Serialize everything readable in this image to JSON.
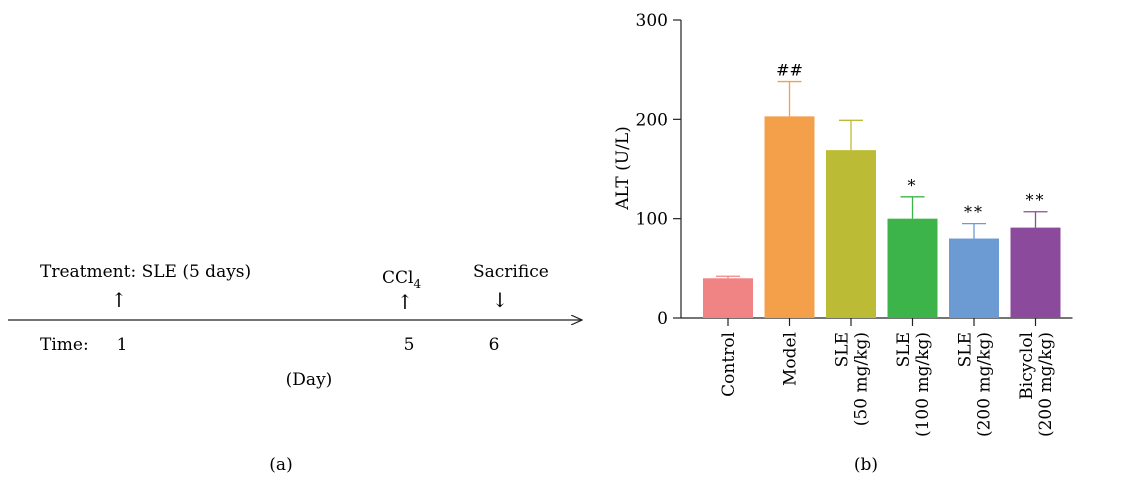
{
  "panel_a": {
    "events": {
      "treatment": "Treatment: SLE (5 days)",
      "ccl4_main": "CCl",
      "ccl4_sub": "4",
      "sacrifice": "Sacrifice"
    },
    "time_label": "Time:",
    "ticks": [
      "1",
      "5",
      "6"
    ],
    "unit": "(Day)",
    "caption": "(a)"
  },
  "panel_b": {
    "caption": "(b)"
  },
  "chart_data": {
    "type": "bar",
    "ylabel": "ALT (U/L)",
    "ylim": [
      0,
      300
    ],
    "yticks": [
      0,
      100,
      200,
      300
    ],
    "categories": [
      [
        "Control"
      ],
      [
        "Model"
      ],
      [
        "SLE",
        "(50 mg/kg)"
      ],
      [
        "SLE",
        "(100 mg/kg)"
      ],
      [
        "SLE",
        "(200 mg/kg)"
      ],
      [
        "Bicyclol",
        "(200 mg/kg)"
      ]
    ],
    "values": [
      40,
      203,
      169,
      100,
      80,
      91
    ],
    "errors": [
      2,
      35,
      30,
      22,
      15,
      16
    ],
    "significance": [
      "",
      "##",
      "",
      "*",
      "**",
      "**"
    ],
    "colors": [
      "#f08484",
      "#f4a04a",
      "#bcbb36",
      "#3cb44a",
      "#6b9bd2",
      "#8b4a9c"
    ]
  }
}
